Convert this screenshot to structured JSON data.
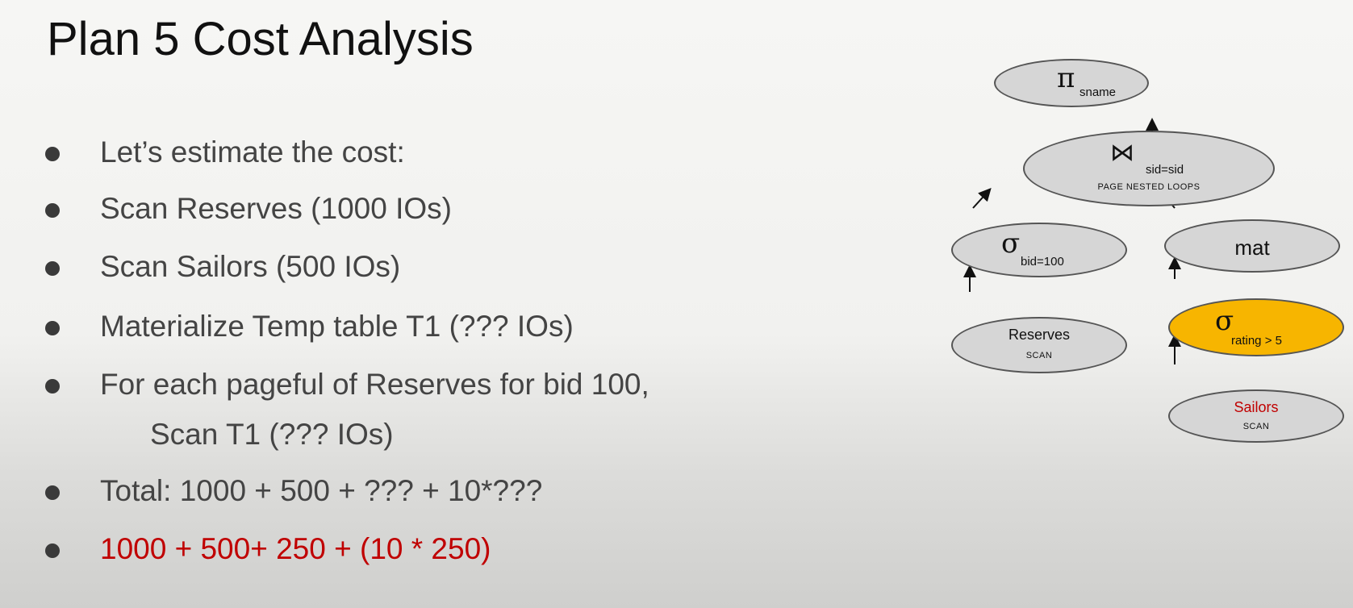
{
  "slide": {
    "title": "Plan 5 Cost Analysis"
  },
  "bullets": [
    {
      "text": "Let’s estimate the cost:"
    },
    {
      "text": "Scan Reserves (1000 IOs)"
    },
    {
      "text": "Scan Sailors (500 IOs)"
    },
    {
      "text": "Materialize Temp table T1 (??? IOs)"
    },
    {
      "text": "For each pageful of Reserves for bid 100,",
      "continuation": "Scan T1 (??? IOs)"
    },
    {
      "text": "Total: 1000 + 500 + ??? + 10*???"
    },
    {
      "text": "1000 + 500+ 250 + (10 * 250)",
      "color": "#c00000"
    }
  ],
  "plan_tree": {
    "colors": {
      "node_fill": "#d6d6d6",
      "node_stroke": "#555555",
      "highlight_fill": "#f7b500",
      "sailors_text": "#c00000"
    },
    "projection": {
      "symbol": "π",
      "subscript": "sname"
    },
    "join": {
      "symbol": "⋈",
      "subscript": "sid=sid",
      "method": "PAGE NESTED LOOPS"
    },
    "select_reserves": {
      "symbol": "σ",
      "subscript": "bid=100"
    },
    "materialize": {
      "label": "mat"
    },
    "reserves_scan": {
      "label": "Reserves",
      "method": "SCAN"
    },
    "select_sailors": {
      "symbol": "σ",
      "subscript": "rating > 5"
    },
    "sailors_scan": {
      "label": "Sailors",
      "method": "SCAN"
    }
  }
}
